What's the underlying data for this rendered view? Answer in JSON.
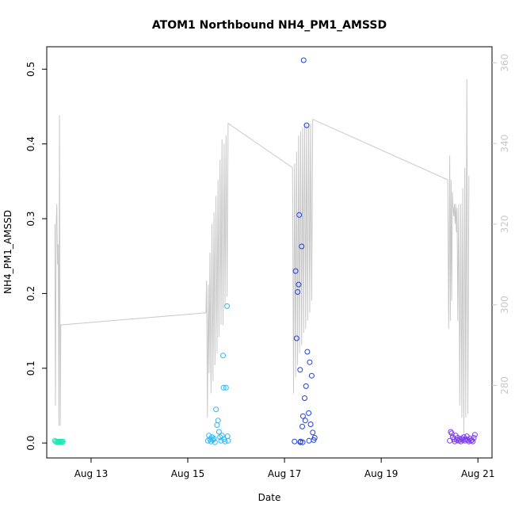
{
  "chart_data": {
    "type": "scatter",
    "title": "ATOM1 Northbound NH4_PM1_AMSSD",
    "xlabel": "Date",
    "ylabel": "NH4_PM1_AMSSD",
    "xlim": [
      "2024-08-12T02:00",
      "2024-08-21T07:00"
    ],
    "ylim": [
      -0.02,
      0.53
    ],
    "y2lim": [
      262,
      364
    ],
    "x_ticks": [
      {
        "label": "Aug 13",
        "x": "2024-08-13"
      },
      {
        "label": "Aug 15",
        "x": "2024-08-15"
      },
      {
        "label": "Aug 17",
        "x": "2024-08-17"
      },
      {
        "label": "Aug 19",
        "x": "2024-08-19"
      },
      {
        "label": "Aug 21",
        "x": "2024-08-21"
      }
    ],
    "y_ticks": [
      "0.0",
      "0.1",
      "0.2",
      "0.3",
      "0.4",
      "0.5"
    ],
    "y2_ticks": [
      "280",
      "300",
      "320",
      "340",
      "360"
    ],
    "grid": false,
    "colors": {
      "aug12": "#1de9b6",
      "aug15": "#29b6f6",
      "aug17": "#1e40dc",
      "aug20": "#7c3aed",
      "secondary_line": "#c8c8c8",
      "right_axis": "#c8c8c8"
    },
    "series": [
      {
        "color_key": "aug12",
        "points": [
          [
            "2024-08-12T06:00",
            0.003
          ],
          [
            "2024-08-12T06:30",
            0.002
          ],
          [
            "2024-08-12T07:00",
            0.001
          ],
          [
            "2024-08-12T07:20",
            0.002
          ],
          [
            "2024-08-12T07:45",
            0.001
          ],
          [
            "2024-08-12T08:00",
            0.002
          ],
          [
            "2024-08-12T08:20",
            0.001
          ],
          [
            "2024-08-12T08:40",
            0.002
          ],
          [
            "2024-08-12T09:00",
            0.001
          ],
          [
            "2024-08-12T09:20",
            0.002
          ],
          [
            "2024-08-12T09:40",
            0.001
          ],
          [
            "2024-08-12T10:00",
            0.002
          ]
        ]
      },
      {
        "color_key": "aug15",
        "points": [
          [
            "2024-08-15T10:00",
            0.003
          ],
          [
            "2024-08-15T10:30",
            0.01
          ],
          [
            "2024-08-15T11:00",
            0.005
          ],
          [
            "2024-08-15T11:30",
            0.002
          ],
          [
            "2024-08-15T12:00",
            0.008
          ],
          [
            "2024-08-15T12:30",
            0.004
          ],
          [
            "2024-08-15T13:00",
            0.006
          ],
          [
            "2024-08-15T13:30",
            0.001
          ],
          [
            "2024-08-15T14:00",
            0.045
          ],
          [
            "2024-08-15T14:30",
            0.024
          ],
          [
            "2024-08-15T15:00",
            0.03
          ],
          [
            "2024-08-15T15:30",
            0.015
          ],
          [
            "2024-08-15T16:00",
            0.008
          ],
          [
            "2024-08-15T16:30",
            0.003
          ],
          [
            "2024-08-15T17:00",
            0.01
          ],
          [
            "2024-08-15T17:30",
            0.117
          ],
          [
            "2024-08-15T17:45",
            0.074
          ],
          [
            "2024-08-15T18:00",
            0.005
          ],
          [
            "2024-08-15T18:30",
            0.002
          ],
          [
            "2024-08-15T19:00",
            0.074
          ],
          [
            "2024-08-15T19:30",
            0.183
          ],
          [
            "2024-08-15T19:45",
            0.009
          ],
          [
            "2024-08-15T20:00",
            0.003
          ]
        ]
      },
      {
        "color_key": "aug17",
        "points": [
          [
            "2024-08-17T05:00",
            0.002
          ],
          [
            "2024-08-17T05:30",
            0.23
          ],
          [
            "2024-08-17T06:00",
            0.14
          ],
          [
            "2024-08-17T06:30",
            0.202
          ],
          [
            "2024-08-17T07:00",
            0.212
          ],
          [
            "2024-08-17T07:20",
            0.305
          ],
          [
            "2024-08-17T07:45",
            0.098
          ],
          [
            "2024-08-17T08:00",
            0.002
          ],
          [
            "2024-08-17T08:30",
            0.263
          ],
          [
            "2024-08-17T08:50",
            0.022
          ],
          [
            "2024-08-17T09:10",
            0.036
          ],
          [
            "2024-08-17T09:30",
            0.512
          ],
          [
            "2024-08-17T10:00",
            0.06
          ],
          [
            "2024-08-17T10:20",
            0.03
          ],
          [
            "2024-08-17T10:40",
            0.076
          ],
          [
            "2024-08-17T11:00",
            0.425
          ],
          [
            "2024-08-17T11:20",
            0.122
          ],
          [
            "2024-08-17T12:00",
            0.04
          ],
          [
            "2024-08-17T12:30",
            0.108
          ],
          [
            "2024-08-17T13:00",
            0.025
          ],
          [
            "2024-08-17T13:30",
            0.09
          ],
          [
            "2024-08-17T14:00",
            0.014
          ],
          [
            "2024-08-17T14:30",
            0.004
          ],
          [
            "2024-08-17T15:00",
            0.007
          ],
          [
            "2024-08-17T07:50",
            0.001
          ],
          [
            "2024-08-17T09:00",
            0.001
          ],
          [
            "2024-08-17T12:10",
            0.003
          ]
        ]
      },
      {
        "color_key": "aug20",
        "points": [
          [
            "2024-08-20T10:00",
            0.003
          ],
          [
            "2024-08-20T10:30",
            0.015
          ],
          [
            "2024-08-20T11:00",
            0.013
          ],
          [
            "2024-08-20T11:30",
            0.008
          ],
          [
            "2024-08-20T12:00",
            0.005
          ],
          [
            "2024-08-20T12:30",
            0.002
          ],
          [
            "2024-08-20T13:00",
            0.01
          ],
          [
            "2024-08-20T13:30",
            0.004
          ],
          [
            "2024-08-20T14:00",
            0.007
          ],
          [
            "2024-08-20T14:30",
            0.003
          ],
          [
            "2024-08-20T15:00",
            0.005
          ],
          [
            "2024-08-20T15:30",
            0.002
          ],
          [
            "2024-08-20T16:00",
            0.006
          ],
          [
            "2024-08-20T16:30",
            0.004
          ],
          [
            "2024-08-20T17:00",
            0.008
          ],
          [
            "2024-08-20T17:30",
            0.003
          ],
          [
            "2024-08-20T18:00",
            0.005
          ],
          [
            "2024-08-20T18:30",
            0.009
          ],
          [
            "2024-08-20T19:00",
            0.004
          ],
          [
            "2024-08-20T19:30",
            0.002
          ],
          [
            "2024-08-20T20:00",
            0.006
          ],
          [
            "2024-08-20T20:30",
            0.003
          ],
          [
            "2024-08-20T21:00",
            0.004
          ],
          [
            "2024-08-20T21:30",
            0.002
          ],
          [
            "2024-08-20T22:00",
            0.007
          ],
          [
            "2024-08-20T22:30",
            0.011
          ]
        ]
      }
    ],
    "secondary_line": [
      [
        "2024-08-12T06:00",
        320
      ],
      [
        "2024-08-12T06:20",
        275
      ],
      [
        "2024-08-12T06:40",
        320
      ],
      [
        "2024-08-12T07:00",
        325
      ],
      [
        "2024-08-12T07:20",
        310
      ],
      [
        "2024-08-12T07:40",
        315
      ],
      [
        "2024-08-12T08:00",
        270
      ],
      [
        "2024-08-12T08:20",
        347
      ],
      [
        "2024-08-12T08:40",
        270
      ],
      [
        "2024-08-12T09:00",
        295
      ],
      [
        "2024-08-15T09:00",
        298
      ],
      [
        "2024-08-15T09:20",
        306
      ],
      [
        "2024-08-15T09:45",
        272
      ],
      [
        "2024-08-15T10:10",
        305
      ],
      [
        "2024-08-15T10:35",
        283
      ],
      [
        "2024-08-15T11:00",
        313
      ],
      [
        "2024-08-15T11:30",
        278
      ],
      [
        "2024-08-15T12:00",
        320
      ],
      [
        "2024-08-15T12:30",
        281
      ],
      [
        "2024-08-15T13:00",
        323
      ],
      [
        "2024-08-15T13:30",
        285
      ],
      [
        "2024-08-15T14:00",
        327
      ],
      [
        "2024-08-15T14:30",
        288
      ],
      [
        "2024-08-15T15:00",
        331
      ],
      [
        "2024-08-15T15:30",
        292
      ],
      [
        "2024-08-15T16:00",
        336
      ],
      [
        "2024-08-15T16:30",
        295
      ],
      [
        "2024-08-15T17:00",
        341
      ],
      [
        "2024-08-15T17:30",
        295
      ],
      [
        "2024-08-15T18:00",
        340
      ],
      [
        "2024-08-15T18:30",
        300
      ],
      [
        "2024-08-15T19:00",
        342
      ],
      [
        "2024-08-15T19:30",
        302
      ],
      [
        "2024-08-15T20:00",
        345
      ],
      [
        "2024-08-17T04:00",
        334
      ],
      [
        "2024-08-17T04:30",
        278
      ],
      [
        "2024-08-17T05:00",
        335
      ],
      [
        "2024-08-17T05:30",
        282
      ],
      [
        "2024-08-17T06:00",
        338
      ],
      [
        "2024-08-17T06:30",
        285
      ],
      [
        "2024-08-17T07:00",
        342
      ],
      [
        "2024-08-17T07:30",
        288
      ],
      [
        "2024-08-17T08:00",
        343
      ],
      [
        "2024-08-17T08:30",
        290
      ],
      [
        "2024-08-17T09:00",
        344
      ],
      [
        "2024-08-17T09:30",
        293
      ],
      [
        "2024-08-17T10:00",
        345
      ],
      [
        "2024-08-17T10:30",
        294
      ],
      [
        "2024-08-17T11:00",
        345
      ],
      [
        "2024-08-17T11:30",
        296
      ],
      [
        "2024-08-17T12:00",
        345
      ],
      [
        "2024-08-17T12:30",
        298
      ],
      [
        "2024-08-17T13:00",
        345
      ],
      [
        "2024-08-17T13:30",
        301
      ],
      [
        "2024-08-17T14:00",
        346
      ],
      [
        "2024-08-20T09:00",
        331
      ],
      [
        "2024-08-20T09:30",
        294
      ],
      [
        "2024-08-20T10:00",
        337
      ],
      [
        "2024-08-20T10:20",
        296
      ],
      [
        "2024-08-20T10:40",
        331
      ],
      [
        "2024-08-20T11:00",
        301
      ],
      [
        "2024-08-20T11:20",
        328
      ],
      [
        "2024-08-20T11:40",
        324
      ],
      [
        "2024-08-20T12:00",
        322
      ],
      [
        "2024-08-20T12:20",
        325
      ],
      [
        "2024-08-20T12:40",
        320
      ],
      [
        "2024-08-20T13:00",
        325
      ],
      [
        "2024-08-20T13:20",
        318
      ],
      [
        "2024-08-20T13:40",
        324
      ],
      [
        "2024-08-20T14:00",
        296
      ],
      [
        "2024-08-20T14:30",
        325
      ],
      [
        "2024-08-20T15:00",
        275
      ],
      [
        "2024-08-20T15:30",
        325
      ],
      [
        "2024-08-20T16:00",
        272
      ],
      [
        "2024-08-20T16:30",
        329
      ],
      [
        "2024-08-20T17:00",
        268
      ],
      [
        "2024-08-20T17:30",
        334
      ],
      [
        "2024-08-20T18:00",
        272
      ],
      [
        "2024-08-20T18:30",
        356
      ],
      [
        "2024-08-20T19:00",
        273
      ],
      [
        "2024-08-20T19:30",
        332
      ]
    ]
  }
}
